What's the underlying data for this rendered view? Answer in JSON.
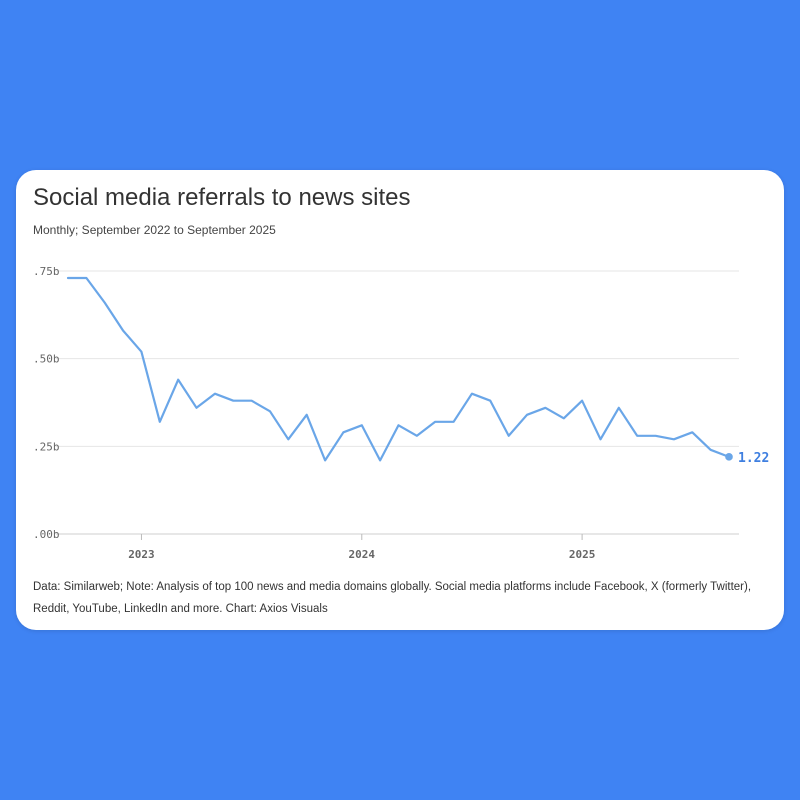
{
  "card": {
    "title": "Social media referrals to news sites",
    "subtitle": "Monthly; September 2022 to September 2025",
    "note": "Data: Similarweb; Note: Analysis of top 100 news and media domains globally. Social media platforms include Facebook, X (formerly Twitter), Reddit, YouTube, LinkedIn and more. Chart: Axios Visuals"
  },
  "colors": {
    "background": "#3f83f3",
    "line": "#6aa6e8",
    "end_label": "#3f7fe0",
    "grid": "#e6e6e6",
    "tick_text": "#666666"
  },
  "chart_data": {
    "type": "line",
    "title": "Social media referrals to news sites",
    "subtitle": "Monthly; September 2022 to September 2025",
    "ylim": [
      1.0,
      1.75
    ],
    "y_ticks": [
      {
        "value": 1.75,
        "label": ".75b"
      },
      {
        "value": 1.5,
        "label": ".50b"
      },
      {
        "value": 1.25,
        "label": ".25b"
      },
      {
        "value": 1.0,
        "label": ".00b"
      }
    ],
    "x_ticks": [
      {
        "value": "2023-01",
        "label": "2023"
      },
      {
        "value": "2024-01",
        "label": "2024"
      },
      {
        "value": "2025-01",
        "label": "2025"
      }
    ],
    "grid": true,
    "end_label": "1.22",
    "series": [
      {
        "x": [
          "2022-09",
          "2022-10",
          "2022-11",
          "2022-12",
          "2023-01",
          "2023-02",
          "2023-03",
          "2023-04",
          "2023-05",
          "2023-06",
          "2023-07",
          "2023-08",
          "2023-09",
          "2023-10",
          "2023-11",
          "2023-12",
          "2024-01",
          "2024-02",
          "2024-03",
          "2024-04",
          "2024-05",
          "2024-06",
          "2024-07",
          "2024-08",
          "2024-09",
          "2024-10",
          "2024-11",
          "2024-12",
          "2025-01",
          "2025-02",
          "2025-03",
          "2025-04",
          "2025-05",
          "2025-06",
          "2025-07",
          "2025-08",
          "2025-09"
        ],
        "values": [
          1.73,
          1.73,
          1.66,
          1.58,
          1.52,
          1.32,
          1.44,
          1.36,
          1.4,
          1.38,
          1.38,
          1.35,
          1.27,
          1.34,
          1.21,
          1.29,
          1.31,
          1.21,
          1.31,
          1.28,
          1.32,
          1.32,
          1.4,
          1.38,
          1.28,
          1.34,
          1.36,
          1.33,
          1.38,
          1.27,
          1.36,
          1.28,
          1.28,
          1.27,
          1.29,
          1.24,
          1.22
        ]
      }
    ]
  }
}
